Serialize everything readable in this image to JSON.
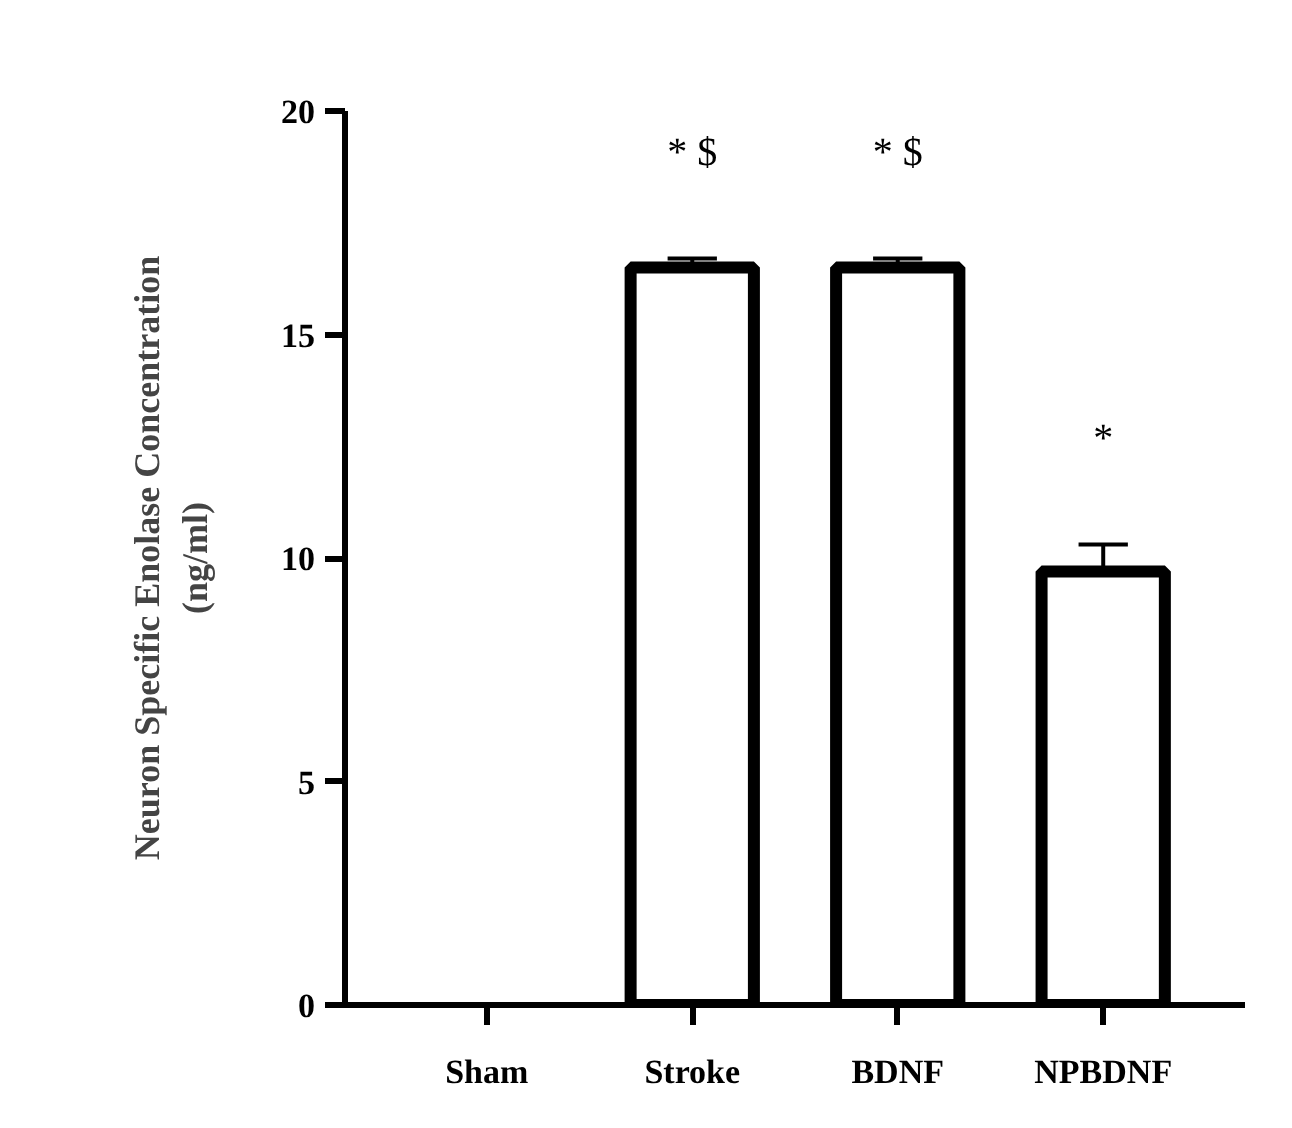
{
  "chart_data": {
    "type": "bar",
    "ylabel": "Neuron Specific Enolase Concentration\n(ng/ml)",
    "categories": [
      "Sham",
      "Stroke",
      "BDNF",
      "NPBDNF"
    ],
    "values": [
      0,
      16.5,
      16.5,
      9.7
    ],
    "errors": [
      null,
      0.2,
      0.2,
      0.6
    ],
    "color": "#ffffff",
    "ylim": [
      0,
      20
    ],
    "yticks": [
      0,
      5,
      10,
      15,
      20
    ],
    "grid": false,
    "annotations": [
      {
        "text": "* $",
        "x": "Stroke",
        "y": 16.7
      },
      {
        "text": "* $",
        "x": "BDNF",
        "y": 16.7
      },
      {
        "text": "*",
        "x": "NPBDNF",
        "y": 10.3
      }
    ]
  }
}
